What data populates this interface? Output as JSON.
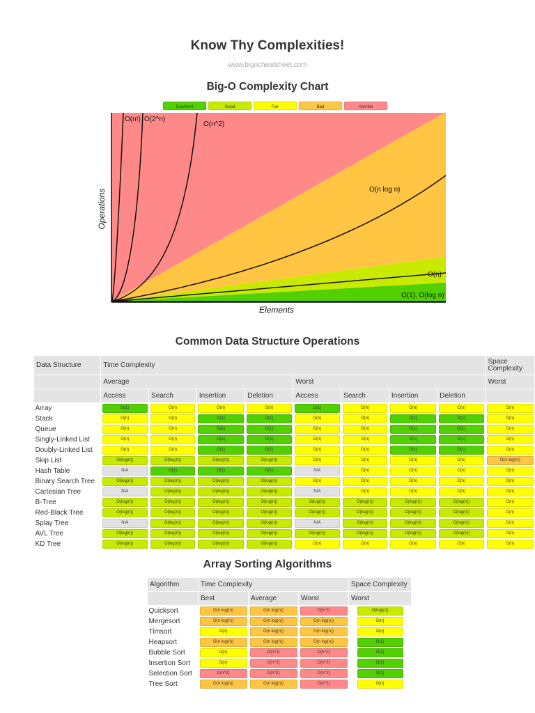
{
  "header": {
    "title": "Know Thy Complexities!",
    "site": "www.bigocheatsheet.com"
  },
  "colors": {
    "Excellent": "#53d000",
    "Good": "#c8ea00",
    "Fair": "#ffff00",
    "Bad": "#ffc543",
    "Horrible": "#ff8989",
    "N/A": "#e2e2e2"
  },
  "chart_data": {
    "type": "line",
    "title": "Big-O Complexity Chart",
    "xlabel": "Elements",
    "ylabel": "Operations",
    "legend": [
      "Excellent",
      "Good",
      "Fair",
      "Bad",
      "Horrible"
    ],
    "legend_position": "top",
    "grid": false,
    "series": [
      {
        "name": "O(n!)"
      },
      {
        "name": "O(2^n)"
      },
      {
        "name": "O(n^2)"
      },
      {
        "name": "O(n log n)"
      },
      {
        "name": "O(n)"
      },
      {
        "name": "O(1), O(log n)"
      }
    ]
  },
  "ds_table": {
    "title": "Common Data Structure Operations",
    "h_structure": "Data Structure",
    "h_time": "Time Complexity",
    "h_space": "Space Complexity",
    "h_average": "Average",
    "h_worst": "Worst",
    "h_space_worst": "Worst",
    "ops": [
      "Access",
      "Search",
      "Insertion",
      "Deletion",
      "Access",
      "Search",
      "Insertion",
      "Deletion"
    ],
    "rows": [
      {
        "name": "Array",
        "cells": [
          [
            "O(1)",
            "Excellent"
          ],
          [
            "O(n)",
            "Fair"
          ],
          [
            "O(n)",
            "Fair"
          ],
          [
            "O(n)",
            "Fair"
          ],
          [
            "O(1)",
            "Excellent"
          ],
          [
            "O(n)",
            "Fair"
          ],
          [
            "O(n)",
            "Fair"
          ],
          [
            "O(n)",
            "Fair"
          ],
          [
            "O(n)",
            "Fair"
          ]
        ]
      },
      {
        "name": "Stack",
        "cells": [
          [
            "O(n)",
            "Fair"
          ],
          [
            "O(n)",
            "Fair"
          ],
          [
            "O(1)",
            "Excellent"
          ],
          [
            "O(1)",
            "Excellent"
          ],
          [
            "O(n)",
            "Fair"
          ],
          [
            "O(n)",
            "Fair"
          ],
          [
            "O(1)",
            "Excellent"
          ],
          [
            "O(1)",
            "Excellent"
          ],
          [
            "O(n)",
            "Fair"
          ]
        ]
      },
      {
        "name": "Queue",
        "cells": [
          [
            "O(n)",
            "Fair"
          ],
          [
            "O(n)",
            "Fair"
          ],
          [
            "O(1)",
            "Excellent"
          ],
          [
            "O(1)",
            "Excellent"
          ],
          [
            "O(n)",
            "Fair"
          ],
          [
            "O(n)",
            "Fair"
          ],
          [
            "O(1)",
            "Excellent"
          ],
          [
            "O(1)",
            "Excellent"
          ],
          [
            "O(n)",
            "Fair"
          ]
        ]
      },
      {
        "name": "Singly-Linked List",
        "cells": [
          [
            "O(n)",
            "Fair"
          ],
          [
            "O(n)",
            "Fair"
          ],
          [
            "O(1)",
            "Excellent"
          ],
          [
            "O(1)",
            "Excellent"
          ],
          [
            "O(n)",
            "Fair"
          ],
          [
            "O(n)",
            "Fair"
          ],
          [
            "O(1)",
            "Excellent"
          ],
          [
            "O(1)",
            "Excellent"
          ],
          [
            "O(n)",
            "Fair"
          ]
        ]
      },
      {
        "name": "Doubly-Linked List",
        "cells": [
          [
            "O(n)",
            "Fair"
          ],
          [
            "O(n)",
            "Fair"
          ],
          [
            "O(1)",
            "Excellent"
          ],
          [
            "O(1)",
            "Excellent"
          ],
          [
            "O(n)",
            "Fair"
          ],
          [
            "O(n)",
            "Fair"
          ],
          [
            "O(1)",
            "Excellent"
          ],
          [
            "O(1)",
            "Excellent"
          ],
          [
            "O(n)",
            "Fair"
          ]
        ]
      },
      {
        "name": "Skip List",
        "cells": [
          [
            "O(log(n))",
            "Good"
          ],
          [
            "O(log(n))",
            "Good"
          ],
          [
            "O(log(n))",
            "Good"
          ],
          [
            "O(log(n))",
            "Good"
          ],
          [
            "O(n)",
            "Fair"
          ],
          [
            "O(n)",
            "Fair"
          ],
          [
            "O(n)",
            "Fair"
          ],
          [
            "O(n)",
            "Fair"
          ],
          [
            "O(n log(n))",
            "Bad"
          ]
        ]
      },
      {
        "name": "Hash Table",
        "cells": [
          [
            "N/A",
            "N/A"
          ],
          [
            "O(1)",
            "Excellent"
          ],
          [
            "O(1)",
            "Excellent"
          ],
          [
            "O(1)",
            "Excellent"
          ],
          [
            "N/A",
            "N/A"
          ],
          [
            "O(n)",
            "Fair"
          ],
          [
            "O(n)",
            "Fair"
          ],
          [
            "O(n)",
            "Fair"
          ],
          [
            "O(n)",
            "Fair"
          ]
        ]
      },
      {
        "name": "Binary Search Tree",
        "cells": [
          [
            "O(log(n))",
            "Good"
          ],
          [
            "O(log(n))",
            "Good"
          ],
          [
            "O(log(n))",
            "Good"
          ],
          [
            "O(log(n))",
            "Good"
          ],
          [
            "O(n)",
            "Fair"
          ],
          [
            "O(n)",
            "Fair"
          ],
          [
            "O(n)",
            "Fair"
          ],
          [
            "O(n)",
            "Fair"
          ],
          [
            "O(n)",
            "Fair"
          ]
        ]
      },
      {
        "name": "Cartesian Tree",
        "cells": [
          [
            "N/A",
            "N/A"
          ],
          [
            "O(log(n))",
            "Good"
          ],
          [
            "O(log(n))",
            "Good"
          ],
          [
            "O(log(n))",
            "Good"
          ],
          [
            "N/A",
            "N/A"
          ],
          [
            "O(n)",
            "Fair"
          ],
          [
            "O(n)",
            "Fair"
          ],
          [
            "O(n)",
            "Fair"
          ],
          [
            "O(n)",
            "Fair"
          ]
        ]
      },
      {
        "name": "B-Tree",
        "cells": [
          [
            "O(log(n))",
            "Good"
          ],
          [
            "O(log(n))",
            "Good"
          ],
          [
            "O(log(n))",
            "Good"
          ],
          [
            "O(log(n))",
            "Good"
          ],
          [
            "O(log(n))",
            "Good"
          ],
          [
            "O(log(n))",
            "Good"
          ],
          [
            "O(log(n))",
            "Good"
          ],
          [
            "O(log(n))",
            "Good"
          ],
          [
            "O(n)",
            "Fair"
          ]
        ]
      },
      {
        "name": "Red-Black Tree",
        "cells": [
          [
            "O(log(n))",
            "Good"
          ],
          [
            "O(log(n))",
            "Good"
          ],
          [
            "O(log(n))",
            "Good"
          ],
          [
            "O(log(n))",
            "Good"
          ],
          [
            "O(log(n))",
            "Good"
          ],
          [
            "O(log(n))",
            "Good"
          ],
          [
            "O(log(n))",
            "Good"
          ],
          [
            "O(log(n))",
            "Good"
          ],
          [
            "O(n)",
            "Fair"
          ]
        ]
      },
      {
        "name": "Splay Tree",
        "cells": [
          [
            "N/A",
            "N/A"
          ],
          [
            "O(log(n))",
            "Good"
          ],
          [
            "O(log(n))",
            "Good"
          ],
          [
            "O(log(n))",
            "Good"
          ],
          [
            "N/A",
            "N/A"
          ],
          [
            "O(log(n))",
            "Good"
          ],
          [
            "O(log(n))",
            "Good"
          ],
          [
            "O(log(n))",
            "Good"
          ],
          [
            "O(n)",
            "Fair"
          ]
        ]
      },
      {
        "name": "AVL Tree",
        "cells": [
          [
            "O(log(n))",
            "Good"
          ],
          [
            "O(log(n))",
            "Good"
          ],
          [
            "O(log(n))",
            "Good"
          ],
          [
            "O(log(n))",
            "Good"
          ],
          [
            "O(log(n))",
            "Good"
          ],
          [
            "O(log(n))",
            "Good"
          ],
          [
            "O(log(n))",
            "Good"
          ],
          [
            "O(log(n))",
            "Good"
          ],
          [
            "O(n)",
            "Fair"
          ]
        ]
      },
      {
        "name": "KD Tree",
        "cells": [
          [
            "O(log(n))",
            "Good"
          ],
          [
            "O(log(n))",
            "Good"
          ],
          [
            "O(log(n))",
            "Good"
          ],
          [
            "O(log(n))",
            "Good"
          ],
          [
            "O(n)",
            "Fair"
          ],
          [
            "O(n)",
            "Fair"
          ],
          [
            "O(n)",
            "Fair"
          ],
          [
            "O(n)",
            "Fair"
          ],
          [
            "O(n)",
            "Fair"
          ]
        ]
      }
    ]
  },
  "sort_table": {
    "title": "Array Sorting Algorithms",
    "h_algorithm": "Algorithm",
    "h_time": "Time Complexity",
    "h_space": "Space Complexity",
    "h_best": "Best",
    "h_average": "Average",
    "h_worst": "Worst",
    "h_space_worst": "Worst",
    "rows": [
      {
        "name": "Quicksort",
        "cells": [
          [
            "O(n log(n))",
            "Bad"
          ],
          [
            "O(n log(n))",
            "Bad"
          ],
          [
            "O(n^2)",
            "Horrible"
          ],
          [
            "O(log(n))",
            "Good"
          ]
        ]
      },
      {
        "name": "Mergesort",
        "cells": [
          [
            "O(n log(n))",
            "Bad"
          ],
          [
            "O(n log(n))",
            "Bad"
          ],
          [
            "O(n log(n))",
            "Bad"
          ],
          [
            "O(n)",
            "Fair"
          ]
        ]
      },
      {
        "name": "Timsort",
        "cells": [
          [
            "O(n)",
            "Fair"
          ],
          [
            "O(n log(n))",
            "Bad"
          ],
          [
            "O(n log(n))",
            "Bad"
          ],
          [
            "O(n)",
            "Fair"
          ]
        ]
      },
      {
        "name": "Heapsort",
        "cells": [
          [
            "O(n log(n))",
            "Bad"
          ],
          [
            "O(n log(n))",
            "Bad"
          ],
          [
            "O(n log(n))",
            "Bad"
          ],
          [
            "O(1)",
            "Excellent"
          ]
        ]
      },
      {
        "name": "Bubble Sort",
        "cells": [
          [
            "O(n)",
            "Fair"
          ],
          [
            "O(n^2)",
            "Horrible"
          ],
          [
            "O(n^2)",
            "Horrible"
          ],
          [
            "O(1)",
            "Excellent"
          ]
        ]
      },
      {
        "name": "Insertion Sort",
        "cells": [
          [
            "O(n)",
            "Fair"
          ],
          [
            "O(n^2)",
            "Horrible"
          ],
          [
            "O(n^2)",
            "Horrible"
          ],
          [
            "O(1)",
            "Excellent"
          ]
        ]
      },
      {
        "name": "Selection Sort",
        "cells": [
          [
            "O(n^2)",
            "Horrible"
          ],
          [
            "O(n^2)",
            "Horrible"
          ],
          [
            "O(n^2)",
            "Horrible"
          ],
          [
            "O(1)",
            "Excellent"
          ]
        ]
      },
      {
        "name": "Tree Sort",
        "cells": [
          [
            "O(n log(n))",
            "Bad"
          ],
          [
            "O(n log(n))",
            "Bad"
          ],
          [
            "O(n^2)",
            "Horrible"
          ],
          [
            "O(n)",
            "Fair"
          ]
        ]
      }
    ]
  }
}
